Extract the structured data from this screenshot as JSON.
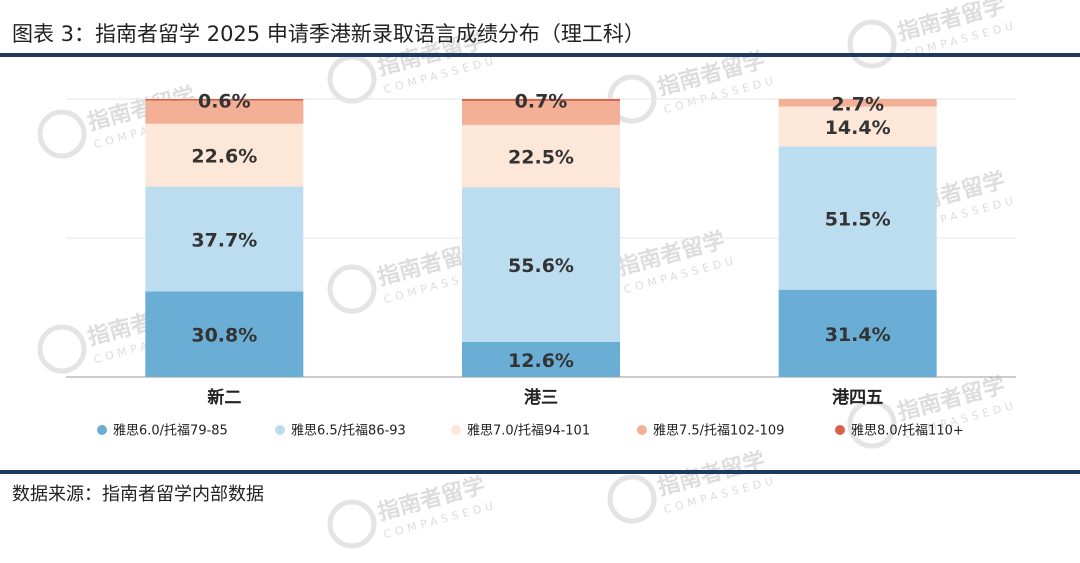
{
  "chart_data": {
    "type": "stacked-bar",
    "title": "图表 3：指南者留学 2025 申请季港新录取语言成绩分布（理工科）",
    "categories": [
      "新二",
      "港三",
      "港四五"
    ],
    "series": [
      {
        "name": "雅思6.0/托福79-85",
        "color": "#6aaed6",
        "values": [
          30.8,
          12.6,
          31.4
        ],
        "value_labels": [
          "30.8%",
          "12.6%",
          "31.4%"
        ]
      },
      {
        "name": "雅思6.5/托福86-93",
        "color": "#bcdcef",
        "values": [
          37.7,
          55.6,
          51.5
        ],
        "value_labels": [
          "37.7%",
          "55.6%",
          "51.5%"
        ]
      },
      {
        "name": "雅思7.0/托福94-101",
        "color": "#fde7d8",
        "values": [
          22.6,
          22.5,
          14.4
        ],
        "value_labels": [
          "22.6%",
          "22.5%",
          "14.4%"
        ]
      },
      {
        "name": "雅思7.5/托福102-109",
        "color": "#f4b096",
        "values": [
          8.3,
          8.6,
          2.7
        ],
        "value_labels": [
          null,
          null,
          "2.7%"
        ]
      },
      {
        "name": "雅思8.0/托福110+",
        "color": "#d9634a",
        "values": [
          0.6,
          0.7,
          0
        ],
        "value_labels": [
          "0.6%",
          "0.7%",
          null
        ]
      }
    ],
    "ylim": [
      0,
      100
    ],
    "gridlines": [
      50,
      100
    ],
    "source": "数据来源：指南者留学内部数据",
    "watermark": "指南者留学",
    "watermark_sub": "COMPASSEDU"
  }
}
